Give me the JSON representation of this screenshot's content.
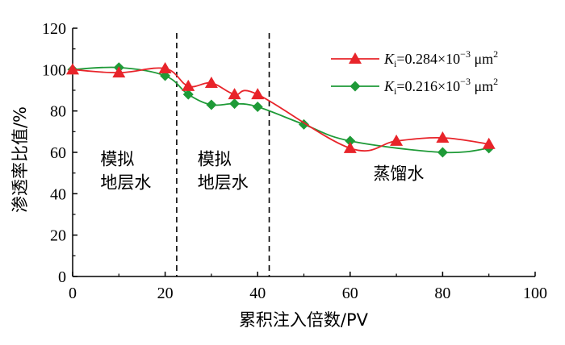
{
  "chart_data": {
    "type": "line",
    "title": "",
    "xlabel": "累积注入倍数/PV",
    "ylabel": "渗透率比值/%",
    "xlim": [
      0,
      100
    ],
    "ylim": [
      0,
      120
    ],
    "x_ticks": [
      "0",
      "20",
      "40",
      "60",
      "80",
      "100"
    ],
    "y_ticks": [
      "0",
      "20",
      "40",
      "60",
      "80",
      "100",
      "120"
    ],
    "x_tick_values": [
      0,
      20,
      40,
      60,
      80,
      100
    ],
    "y_tick_values": [
      0,
      20,
      40,
      60,
      80,
      100,
      120
    ],
    "grid": false,
    "legend_position": "top-right",
    "divider_lines_x": [
      22.5,
      42.5
    ],
    "regions": [
      {
        "lines": [
          "模拟",
          "地层水"
        ],
        "x": 6,
        "y": 54
      },
      {
        "lines": [
          "模拟",
          "地层水"
        ],
        "x": 27,
        "y": 54
      },
      {
        "lines": [
          "蒸馏水"
        ],
        "x": 65,
        "y": 47
      }
    ],
    "series": [
      {
        "name": "K_i=0.284×10^-3 μm^2",
        "legend_prefix": "K",
        "legend_sub": "i",
        "legend_mid": "=0.284×10",
        "legend_exp": "−3",
        "legend_unit": " μm",
        "legend_unit_exp": "2",
        "color": "#e8242a",
        "marker": "triangle",
        "x": [
          0,
          10,
          20,
          25,
          30,
          35,
          40,
          60,
          70,
          80,
          90
        ],
        "values": [
          100,
          98.5,
          100.5,
          92,
          93.5,
          88,
          88,
          62,
          65.5,
          67,
          64
        ]
      },
      {
        "name": "K_i=0.216×10^-3 μm^2",
        "legend_prefix": "K",
        "legend_sub": "i",
        "legend_mid": "=0.216×10",
        "legend_exp": "−3",
        "legend_unit": " μm",
        "legend_unit_exp": "2",
        "color": "#1e9a37",
        "marker": "diamond",
        "x": [
          0,
          10,
          20,
          25,
          30,
          35,
          40,
          50,
          60,
          80,
          90
        ],
        "values": [
          100,
          101,
          97,
          88,
          83,
          83.5,
          82,
          73.5,
          65.5,
          60,
          62
        ]
      }
    ]
  }
}
